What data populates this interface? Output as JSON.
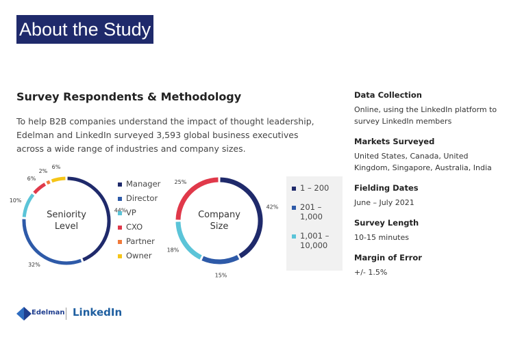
{
  "header": {
    "title": "About the Study"
  },
  "heading": "Survey Respondents & Methodology",
  "intro": "To help B2B companies understand the impact of thought leadership, Edelman and LinkedIn surveyed 3,593 global business executives across a wide range of industries and company sizes.",
  "chart_data": [
    {
      "type": "pie",
      "title": "Seniority Level",
      "categories": [
        "Manager",
        "Director",
        "VP",
        "CXO",
        "Partner",
        "Owner"
      ],
      "values": [
        44,
        32,
        10,
        6,
        2,
        6
      ],
      "value_labels": [
        "44%",
        "32%",
        "10%",
        "6%",
        "2%",
        "6%"
      ],
      "colors": [
        "#1f2a6b",
        "#2e5aa8",
        "#5bc4d8",
        "#e0394a",
        "#f07a3a",
        "#f5c518"
      ]
    },
    {
      "type": "pie",
      "title": "Company Size",
      "categories": [
        "1 – 200",
        "201 – 1,000",
        "1,001 – 10,000",
        null
      ],
      "values": [
        42,
        15,
        18,
        25
      ],
      "value_labels": [
        "42%",
        "15%",
        "18%",
        "25%"
      ],
      "colors": [
        "#1f2a6b",
        "#2e5aa8",
        "#5bc4d8",
        "#e0394a"
      ]
    }
  ],
  "details": [
    {
      "label": "Data Collection",
      "text": "Online, using the LinkedIn platform to survey LinkedIn members"
    },
    {
      "label": "Markets Surveyed",
      "text": "United States, Canada, United Kingdom, Singapore, Australia, India"
    },
    {
      "label": "Fielding Dates",
      "text": "June – July 2021"
    },
    {
      "label": "Survey Length",
      "text": "10-15 minutes"
    },
    {
      "label": "Margin of Error",
      "text": "+/- 1.5%"
    }
  ],
  "logos": [
    "Edelman",
    "LinkedIn"
  ]
}
